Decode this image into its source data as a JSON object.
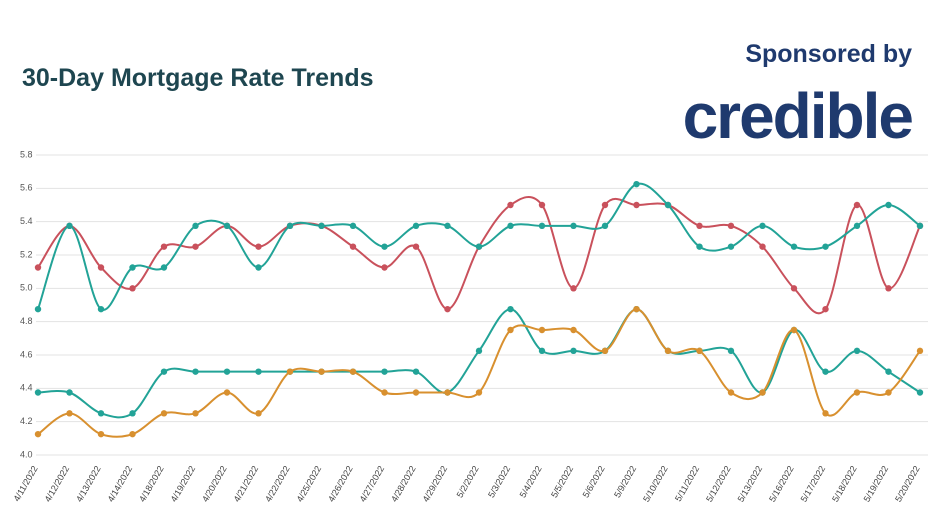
{
  "chart_data": {
    "type": "line",
    "title": "30-Day Mortgage Rate Trends",
    "sponsor_label": "Sponsored by",
    "sponsor": "credible",
    "categories": [
      "4/11/2022",
      "4/12/2022",
      "4/13/2022",
      "4/14/2022",
      "4/18/2022",
      "4/19/2022",
      "4/20/2022",
      "4/21/2022",
      "4/22/2022",
      "4/25/2022",
      "4/26/2022",
      "4/27/2022",
      "4/28/2022",
      "4/29/2022",
      "5/2/2022",
      "5/3/2022",
      "5/4/2022",
      "5/5/2022",
      "5/6/2022",
      "5/9/2022",
      "5/10/2022",
      "5/11/2022",
      "5/12/2022",
      "5/13/2022",
      "5/16/2022",
      "5/17/2022",
      "5/18/2022",
      "5/19/2022",
      "5/20/2022"
    ],
    "series": [
      {
        "color": "#c9515c",
        "values": [
          5.125,
          5.375,
          5.125,
          5.0,
          5.25,
          5.25,
          5.375,
          5.25,
          5.375,
          5.375,
          5.25,
          5.125,
          5.25,
          4.875,
          5.25,
          5.5,
          5.5,
          5.0,
          5.5,
          5.5,
          5.5,
          5.375,
          5.375,
          5.25,
          5.0,
          4.875,
          5.5,
          5.0,
          5.375
        ]
      },
      {
        "color": "#22a397",
        "values": [
          4.875,
          5.375,
          4.875,
          5.125,
          5.125,
          5.375,
          5.375,
          5.125,
          5.375,
          5.375,
          5.375,
          5.25,
          5.375,
          5.375,
          5.25,
          5.375,
          5.375,
          5.375,
          5.375,
          5.625,
          5.5,
          5.25,
          5.25,
          5.375,
          5.25,
          5.25,
          5.375,
          5.5,
          5.375
        ]
      },
      {
        "color": "#22a397",
        "values": [
          4.375,
          4.375,
          4.25,
          4.25,
          4.5,
          4.5,
          4.5,
          4.5,
          4.5,
          4.5,
          4.5,
          4.5,
          4.5,
          4.375,
          4.625,
          4.875,
          4.625,
          4.625,
          4.625,
          4.875,
          4.625,
          4.625,
          4.625,
          4.375,
          4.75,
          4.5,
          4.625,
          4.5,
          4.375
        ]
      },
      {
        "color": "#d8902f",
        "values": [
          4.125,
          4.25,
          4.125,
          4.125,
          4.25,
          4.25,
          4.375,
          4.25,
          4.5,
          4.5,
          4.5,
          4.375,
          4.375,
          4.375,
          4.375,
          4.75,
          4.75,
          4.75,
          4.625,
          4.875,
          4.625,
          4.625,
          4.375,
          4.375,
          4.75,
          4.25,
          4.375,
          4.375,
          4.625
        ]
      }
    ],
    "ylim": [
      4.0,
      5.8
    ],
    "yticks": [
      {
        "value": 4,
        "label": "4.0"
      },
      4.2,
      4.4,
      4.6,
      4.8,
      {
        "value": 5,
        "label": "5.0"
      },
      5.2,
      5.4,
      5.6,
      5.8
    ],
    "grid": true
  }
}
